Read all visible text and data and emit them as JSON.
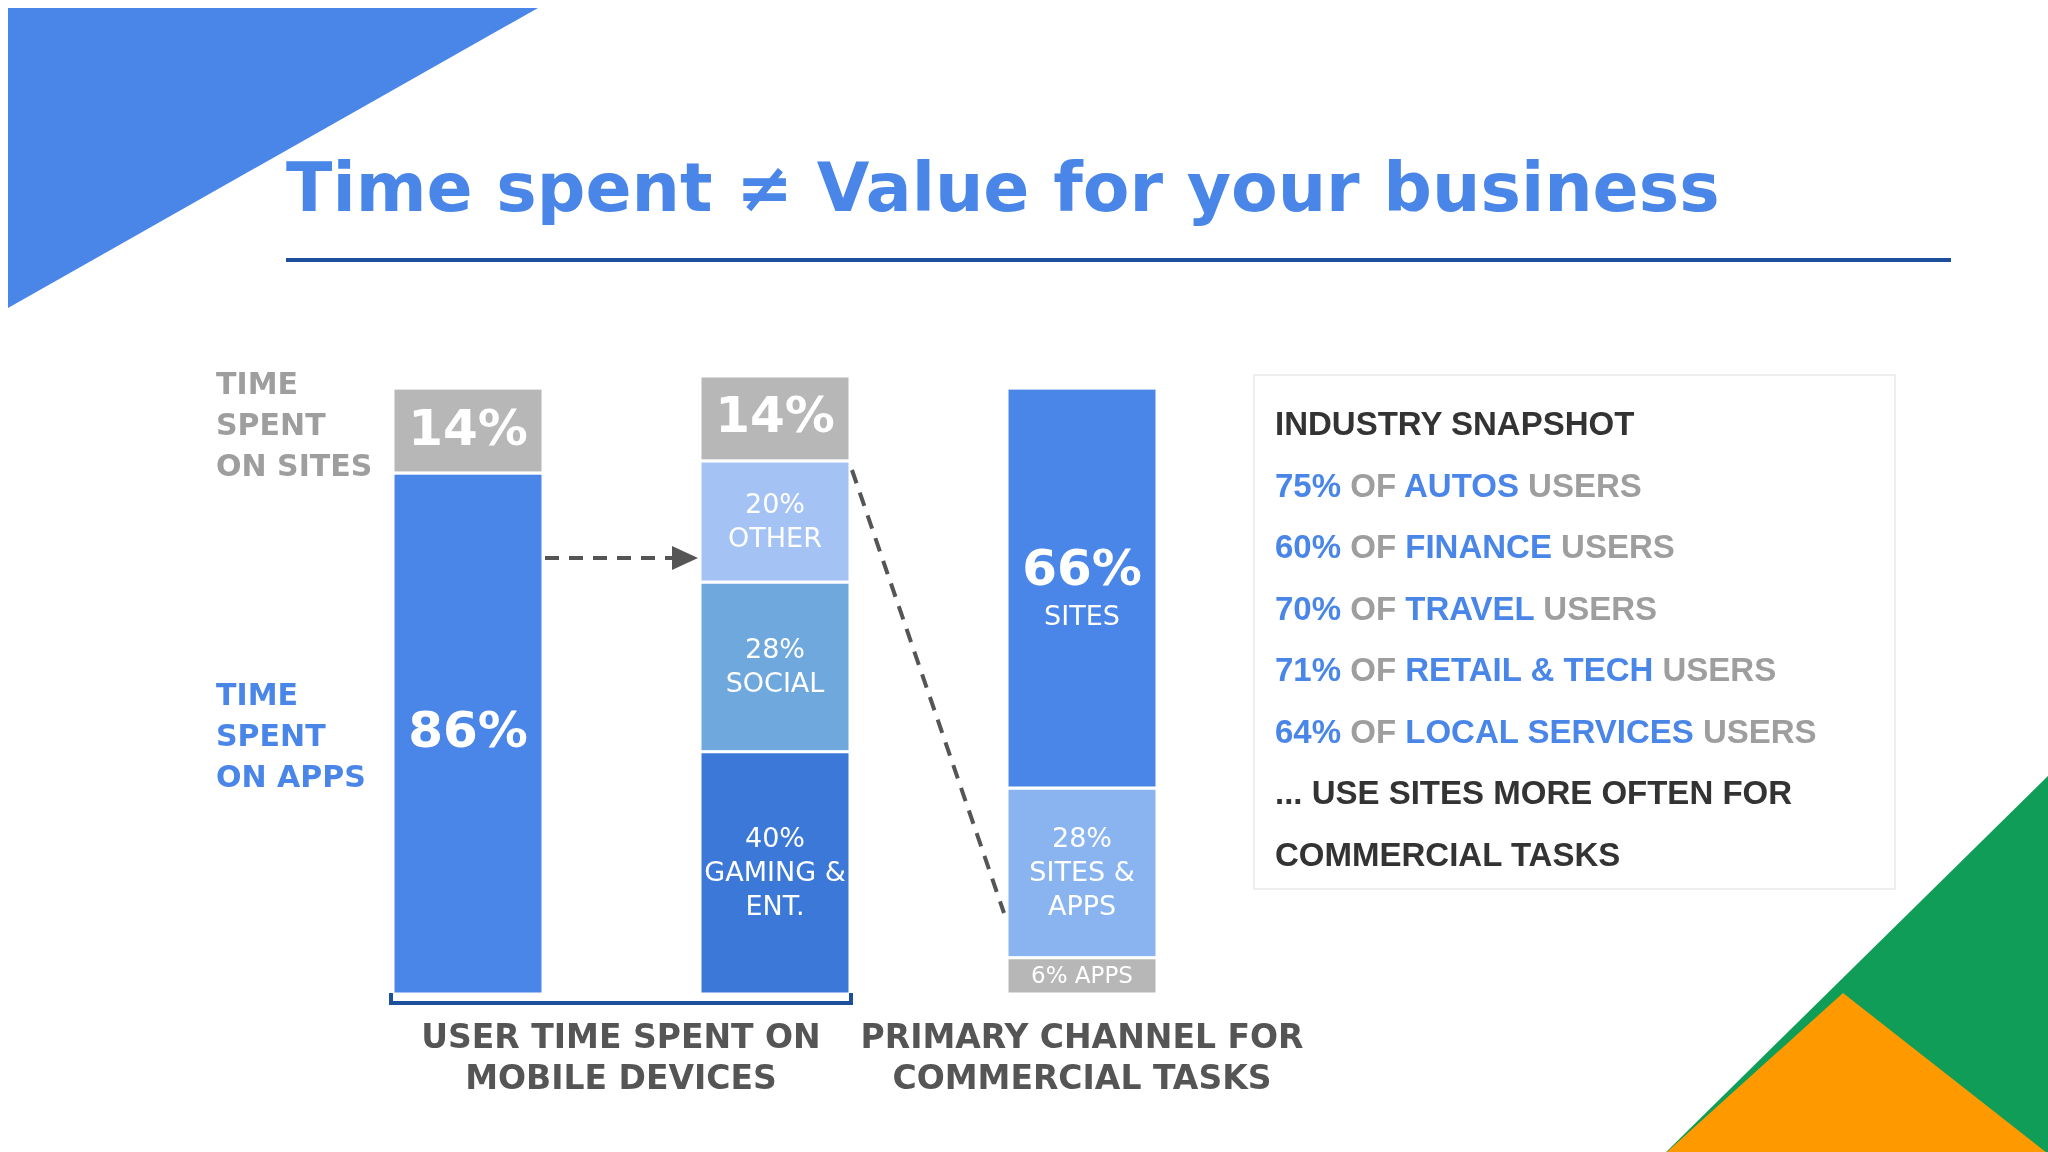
{
  "chart_data": {
    "type": "bar",
    "title": "Time spent ≠ Value for your business",
    "categories": [
      null,
      null,
      null
    ],
    "stacked": true,
    "series": [
      {
        "colors": [
          "#4a86e8",
          "#3c78d8",
          "#b7b7b7"
        ],
        "values": [
          86,
          40,
          6
        ],
        "value_labels": [
          "86%",
          "40%\nGAMING & ENT.",
          "6%\nAPPS"
        ]
      },
      {
        "colors": [
          "#6fa8dc",
          "#6fa8dc",
          "#8ab4f0"
        ],
        "values": [
          null,
          28,
          28
        ],
        "value_labels": [
          null,
          "28%\nSOCIAL",
          "28%\nSITES &\nAPPS"
        ]
      },
      {
        "colors": [
          "#a4c2f4",
          "#a4c2f4",
          "#4a86e8"
        ],
        "values": [
          null,
          20,
          66
        ],
        "value_labels": [
          null,
          "20%\nOTHER",
          "66%\nSITES"
        ]
      },
      {
        "colors": [
          "#b7b7b7",
          "#b7b7b7",
          "#b7b7b7"
        ],
        "values": [
          14,
          14,
          null
        ],
        "value_labels": [
          "14%",
          "14%",
          null
        ]
      }
    ],
    "annotations": [
      "TIME SPENT ON SITES",
      "TIME SPENT ON APPS",
      "USER TIME SPENT ON MOBILE DEVICES",
      "PRIMARY CHANNEL FOR COMMERCIAL TASKS",
      "INDUSTRY SNAPSHOT",
      "75% OF AUTOS USERS",
      "60% OF FINANCE USERS",
      "70% OF TRAVEL USERS",
      "71% OF RETAIL & TECH USERS",
      "64% OF LOCAL SERVICES USERS",
      "... USE SITES MORE OFTEN FOR COMMERCIAL TASKS"
    ]
  }
}
